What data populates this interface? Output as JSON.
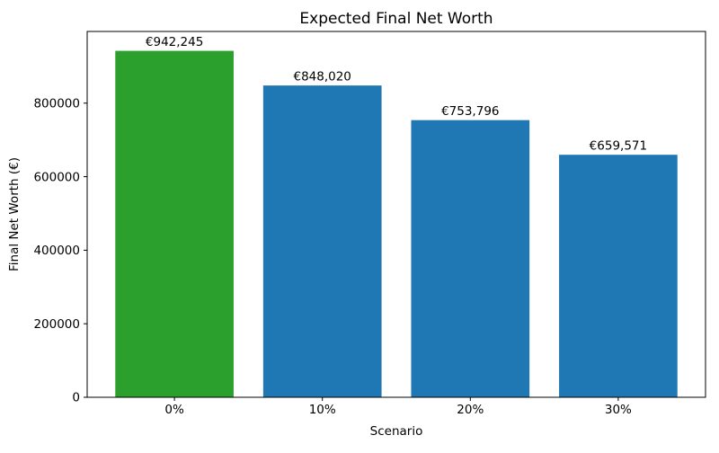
{
  "chart_data": {
    "type": "bar",
    "title": "Expected Final Net Worth",
    "xlabel": "Scenario",
    "ylabel": "Final Net Worth (€)",
    "categories": [
      "0%",
      "10%",
      "20%",
      "30%"
    ],
    "values": [
      942245,
      848020,
      753796,
      659571
    ],
    "bar_labels": [
      "€942,245",
      "€848,020",
      "€753,796",
      "€659,571"
    ],
    "bar_colors": [
      "#2ca02c",
      "#1f77b4",
      "#1f77b4",
      "#1f77b4"
    ],
    "ylim": [
      0,
      995000
    ],
    "yticks": [
      0,
      200000,
      400000,
      600000,
      800000
    ],
    "ytick_labels": [
      "0",
      "200000",
      "400000",
      "600000",
      "800000"
    ],
    "grid": false,
    "legend": null,
    "colors": {
      "highlight_bar": "#2ca02c",
      "default_bar": "#1f77b4",
      "axis": "#000000",
      "background": "#ffffff"
    }
  }
}
